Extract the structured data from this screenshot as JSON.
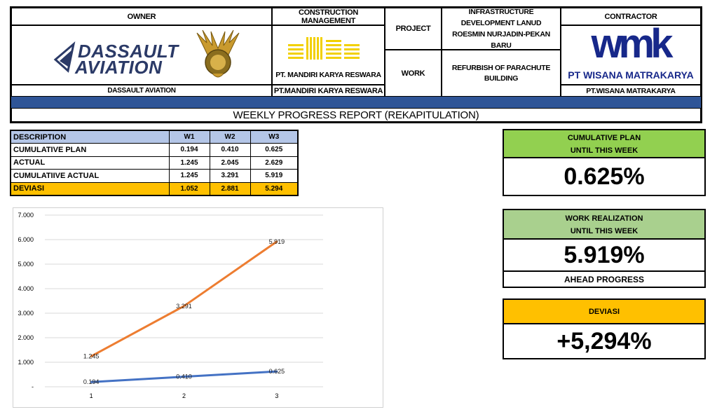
{
  "header": {
    "owner_label": "OWNER",
    "owner_logo_text_1": "DASSAULT",
    "owner_logo_text_2": "AVIATION",
    "owner_name": "DASSAULT AVIATION",
    "cm_label": "CONSTRUCTION MANAGEMENT",
    "cm_logo_caption": "PT. MANDIRI KARYA RESWARA",
    "cm_name": "PT.MANDIRI KARYA RESWARA",
    "project_label": "PROJECT",
    "project_value": "INFRASTRUCTURE DEVELOPMENT LANUD ROESMIN NURJADIN-PEKAN BARU",
    "work_label": "WORK",
    "work_value": "REFURBISH OF PARACHUTE BUILDING",
    "contractor_label": "CONTRACTOR",
    "contractor_logo_text": "wmk",
    "contractor_logo_caption": "PT WISANA MATRAKARYA",
    "contractor_name": "PT.WISANA MATRAKARYA",
    "report_title": "WEEKLY PROGRESS REPORT (REKAPITULATION)"
  },
  "table": {
    "columns": [
      "DESCRIPTION",
      "W1",
      "W2",
      "W3"
    ],
    "rows": [
      {
        "label": "CUMULATIVE PLAN",
        "values": [
          "0.194",
          "0.410",
          "0.625"
        ]
      },
      {
        "label": "ACTUAL",
        "values": [
          "1.245",
          "2.045",
          "2.629"
        ]
      },
      {
        "label": "CUMULATIIVE ACTUAL",
        "values": [
          "1.245",
          "3.291",
          "5.919"
        ]
      },
      {
        "label": "DEVIASI",
        "values": [
          "1.052",
          "2.881",
          "5.294"
        ]
      }
    ]
  },
  "kpis": {
    "plan": {
      "caption_1": "CUMULATIVE PLAN",
      "caption_2": "UNTIL THIS WEEK",
      "value": "0.625%",
      "color": "#92d050"
    },
    "realization": {
      "caption_1": "WORK REALIZATION",
      "caption_2": "UNTIL THIS WEEK",
      "value": "5.919%",
      "footer": "AHEAD PROGRESS",
      "color": "#a9d08e"
    },
    "deviasi": {
      "caption": "DEVIASI",
      "value": "+5,294%",
      "color": "#ffc000"
    }
  },
  "chart_data": {
    "type": "line",
    "x": [
      1,
      2,
      3
    ],
    "categories": [
      "1",
      "2",
      "3"
    ],
    "ylim": [
      0,
      7
    ],
    "yticks": [
      0,
      1,
      2,
      3,
      4,
      5,
      6,
      7
    ],
    "ytick_labels": [
      "-",
      "1.000",
      "2.000",
      "3.000",
      "4.000",
      "5.000",
      "6.000",
      "7.000"
    ],
    "grid": true,
    "series": [
      {
        "values": [
          1.245,
          3.291,
          5.919
        ],
        "labels": [
          "1.245",
          "3.291",
          "5.919"
        ],
        "color": "#ed7d31"
      },
      {
        "values": [
          0.194,
          0.41,
          0.625
        ],
        "labels": [
          "0.194",
          "0.410",
          "0.625"
        ],
        "color": "#4472c4"
      }
    ]
  }
}
